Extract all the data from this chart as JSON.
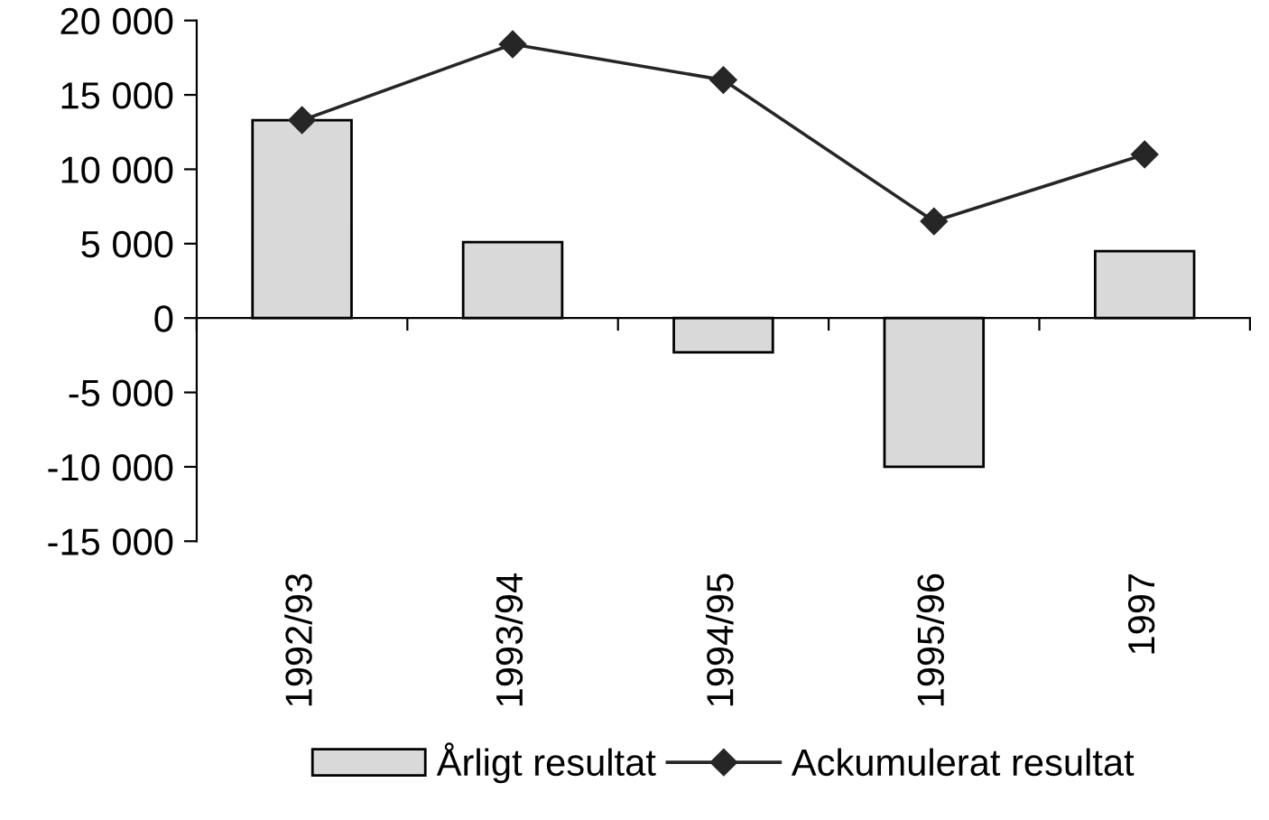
{
  "chart_data": {
    "type": "bar",
    "categories": [
      "1992/93",
      "1993/94",
      "1994/95",
      "1995/96",
      "1997"
    ],
    "series": [
      {
        "name": "Årligt resultat",
        "color": "#d9d9d9",
        "values": [
          13300,
          5100,
          -2300,
          -10000,
          4500
        ]
      },
      {
        "name": "Ackumulerat resultat",
        "type": "line",
        "color": "#262626",
        "marker": "diamond",
        "values": [
          13300,
          18400,
          16000,
          6500,
          11000
        ]
      }
    ],
    "ylim": [
      -15000,
      20000
    ],
    "yticks": [
      {
        "value": -15000,
        "label": "-15 000"
      },
      {
        "value": -10000,
        "label": "-10 000"
      },
      {
        "value": -5000,
        "label": "-5 000"
      },
      {
        "value": 0,
        "label": "0"
      },
      {
        "value": 5000,
        "label": "5 000"
      },
      {
        "value": 10000,
        "label": "10 000"
      },
      {
        "value": 15000,
        "label": "15 000"
      },
      {
        "value": 20000,
        "label": "20 000"
      }
    ],
    "legend": "bottom"
  }
}
